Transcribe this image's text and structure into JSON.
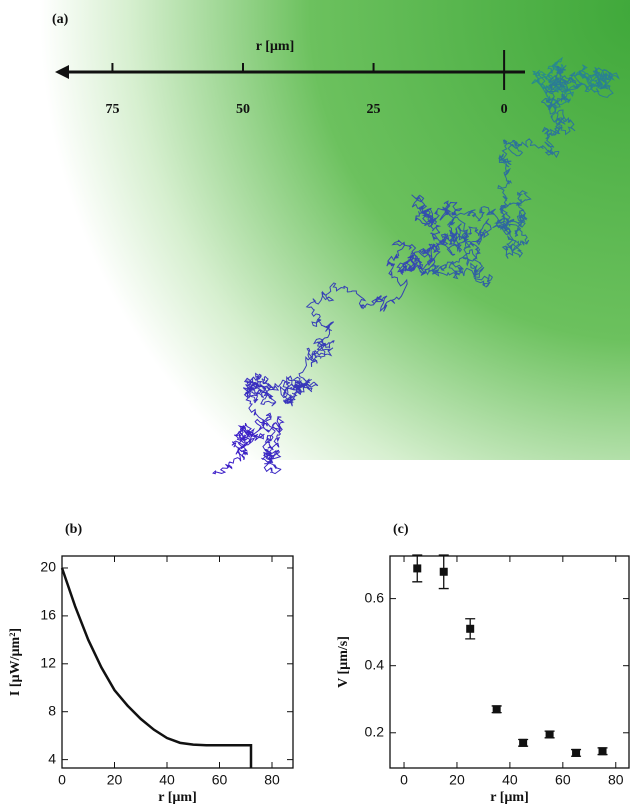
{
  "chart_data": [
    {
      "type": "trajectory",
      "title": "(a)",
      "xlabel": "r [µm]",
      "xlim": [
        86,
        -4
      ],
      "xticks": [
        75,
        50,
        25,
        0
      ]
    },
    {
      "type": "line",
      "title": "(b)",
      "xlabel": "r [µm]",
      "ylabel": "I [µW/µm²]",
      "x": [
        0,
        5,
        10,
        15,
        20,
        25,
        30,
        35,
        40,
        45,
        50,
        55,
        60,
        65,
        70,
        72,
        72
      ],
      "values": [
        20,
        16.8,
        14,
        11.7,
        9.8,
        8.5,
        7.4,
        6.5,
        5.8,
        5.4,
        5.25,
        5.2,
        5.2,
        5.2,
        5.2,
        5.2,
        3.3
      ],
      "color": "#111111",
      "xlim": [
        0,
        88
      ],
      "xticks": [
        0,
        20,
        40,
        60,
        80
      ],
      "ylim": [
        3.3,
        21
      ],
      "yticks": [
        4,
        8,
        12,
        16,
        20
      ]
    },
    {
      "type": "errorbar",
      "title": "(c)",
      "xlabel": "r [µm]",
      "ylabel": "V [µm/s]",
      "x": [
        5,
        15,
        25,
        35,
        45,
        55,
        65,
        75
      ],
      "values": [
        0.69,
        0.68,
        0.51,
        0.27,
        0.17,
        0.195,
        0.14,
        0.145
      ],
      "errors": [
        0.04,
        0.05,
        0.03,
        0.01,
        0.01,
        0.01,
        0.01,
        0.01
      ],
      "color": "#111111",
      "xlim": [
        -5.3,
        85
      ],
      "xticks": [
        0,
        20,
        40,
        60,
        80
      ],
      "ylim": [
        0.095,
        0.727
      ],
      "yticks": [
        {
          "value": 0.2,
          "label": "0.2"
        },
        {
          "value": 0.4,
          "label": "0.4"
        },
        {
          "value": 0.6,
          "label": "0.6"
        }
      ]
    }
  ]
}
